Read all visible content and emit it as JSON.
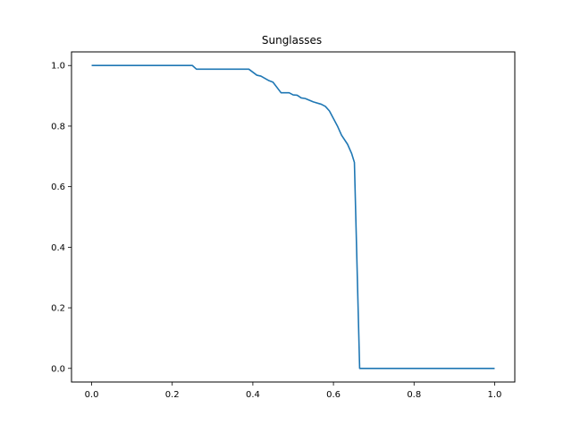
{
  "chart_data": {
    "type": "line",
    "title": "Sunglasses",
    "xlabel": "",
    "ylabel": "",
    "xlim": [
      -0.05,
      1.05
    ],
    "ylim": [
      -0.045,
      1.045
    ],
    "x_ticks": [
      0.0,
      0.2,
      0.4,
      0.6,
      0.8,
      1.0
    ],
    "x_tick_labels": [
      "0.0",
      "0.2",
      "0.4",
      "0.6",
      "0.8",
      "1.0"
    ],
    "y_ticks": [
      0.0,
      0.2,
      0.4,
      0.6,
      0.8,
      1.0
    ],
    "y_tick_labels": [
      "0.0",
      "0.2",
      "0.4",
      "0.6",
      "0.8",
      "1.0"
    ],
    "grid": false,
    "legend": "none",
    "series": [
      {
        "color": "#1f77b4",
        "x": [
          0.0,
          0.25,
          0.26,
          0.39,
          0.41,
          0.42,
          0.44,
          0.45,
          0.47,
          0.49,
          0.5,
          0.51,
          0.52,
          0.53,
          0.55,
          0.57,
          0.58,
          0.59,
          0.6,
          0.61,
          0.62,
          0.635,
          0.645,
          0.652,
          0.665,
          0.7,
          0.8,
          0.9,
          1.0
        ],
        "y": [
          1.0,
          1.0,
          0.988,
          0.988,
          0.968,
          0.965,
          0.95,
          0.945,
          0.91,
          0.91,
          0.903,
          0.902,
          0.893,
          0.891,
          0.88,
          0.872,
          0.865,
          0.85,
          0.825,
          0.8,
          0.77,
          0.74,
          0.71,
          0.68,
          0.0,
          0.0,
          0.0,
          0.0,
          0.0
        ]
      }
    ]
  }
}
